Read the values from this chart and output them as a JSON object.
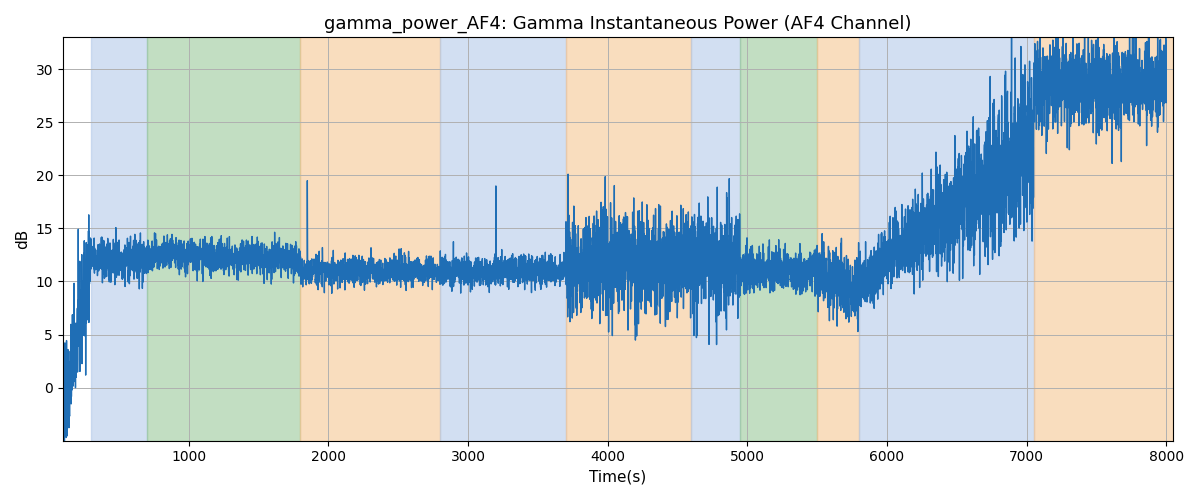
{
  "title": "gamma_power_AF4: Gamma Instantaneous Power (AF4 Channel)",
  "xlabel": "Time(s)",
  "ylabel": "dB",
  "xlim": [
    100,
    8050
  ],
  "ylim": [
    -5,
    33
  ],
  "line_color": "#1f6eb5",
  "line_width": 1.0,
  "bands": [
    {
      "xmin": 300,
      "xmax": 700,
      "color": "#aec6e8",
      "alpha": 0.55
    },
    {
      "xmin": 700,
      "xmax": 1800,
      "color": "#90c490",
      "alpha": 0.55
    },
    {
      "xmin": 1800,
      "xmax": 2800,
      "color": "#f5c18a",
      "alpha": 0.55
    },
    {
      "xmin": 2800,
      "xmax": 3700,
      "color": "#aec6e8",
      "alpha": 0.55
    },
    {
      "xmin": 3700,
      "xmax": 4600,
      "color": "#f5c18a",
      "alpha": 0.55
    },
    {
      "xmin": 4600,
      "xmax": 4950,
      "color": "#aec6e8",
      "alpha": 0.55
    },
    {
      "xmin": 4950,
      "xmax": 5500,
      "color": "#90c490",
      "alpha": 0.55
    },
    {
      "xmin": 5500,
      "xmax": 5800,
      "color": "#f5c18a",
      "alpha": 0.55
    },
    {
      "xmin": 5800,
      "xmax": 7050,
      "color": "#aec6e8",
      "alpha": 0.55
    },
    {
      "xmin": 7050,
      "xmax": 8050,
      "color": "#f5c18a",
      "alpha": 0.55
    }
  ],
  "xticks": [
    1000,
    2000,
    3000,
    4000,
    5000,
    6000,
    7000,
    8000
  ],
  "yticks": [
    0,
    5,
    10,
    15,
    20,
    25,
    30
  ],
  "seed": 42
}
